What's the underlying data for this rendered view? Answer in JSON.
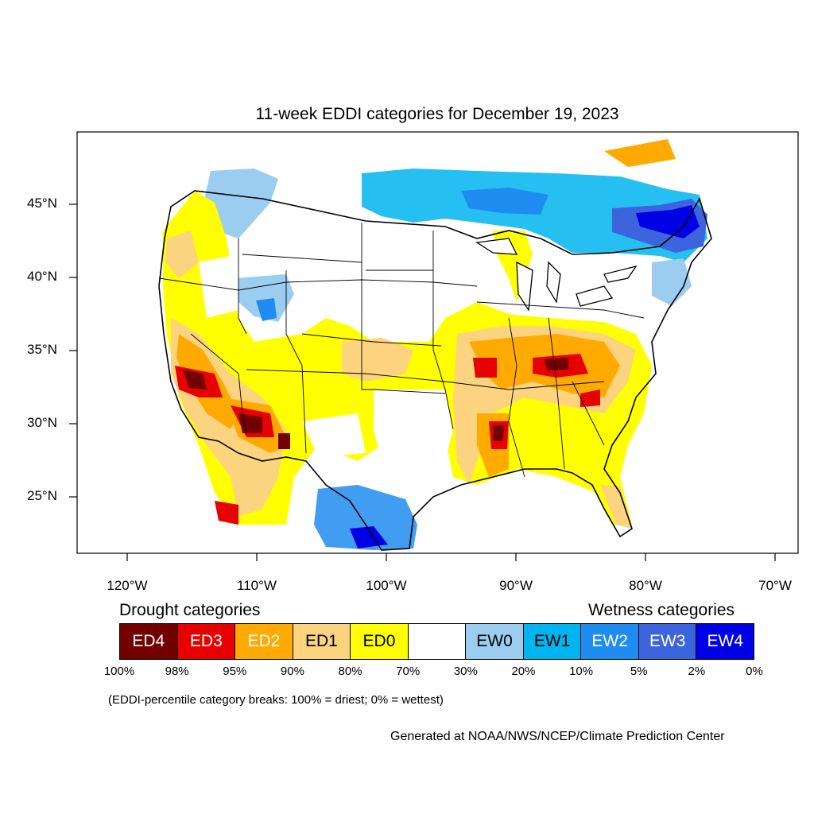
{
  "title": "11-week EDDI categories for December 19, 2023",
  "lat_labels": [
    "45°N",
    "40°N",
    "35°N",
    "30°N",
    "25°N"
  ],
  "lon_labels": [
    "120°W",
    "110°W",
    "100°W",
    "90°W",
    "80°W",
    "70°W"
  ],
  "legend": {
    "drought_heading": "Drought categories",
    "wetness_heading": "Wetness categories",
    "categories": [
      {
        "label": "ED4",
        "color": "#730000",
        "text_color": "#ffffff"
      },
      {
        "label": "ED3",
        "color": "#e60000",
        "text_color": "#ffffff"
      },
      {
        "label": "ED2",
        "color": "#ffaa00",
        "text_color": "#ffffff"
      },
      {
        "label": "ED1",
        "color": "#fcd37f",
        "text_color": "#000000"
      },
      {
        "label": "ED0",
        "color": "#ffff00",
        "text_color": "#000000"
      },
      {
        "label": "",
        "color": "#ffffff",
        "text_color": "#000000"
      },
      {
        "label": "EW0",
        "color": "#9bcdf0",
        "text_color": "#000000"
      },
      {
        "label": "EW1",
        "color": "#00b4f0",
        "text_color": "#000000"
      },
      {
        "label": "EW2",
        "color": "#1e8cf0",
        "text_color": "#ffffff"
      },
      {
        "label": "EW3",
        "color": "#3c64dc",
        "text_color": "#ffffff"
      },
      {
        "label": "EW4",
        "color": "#0000e6",
        "text_color": "#ffffff"
      }
    ],
    "breaks": [
      "100%",
      "98%",
      "95%",
      "90%",
      "80%",
      "70%",
      "30%",
      "20%",
      "10%",
      "5%",
      "2%",
      "0%"
    ],
    "note": "(EDDI-percentile category breaks: 100% = driest; 0% = wettest)"
  },
  "credit": "Generated at NOAA/NWS/NCEP/Climate Prediction Center"
}
